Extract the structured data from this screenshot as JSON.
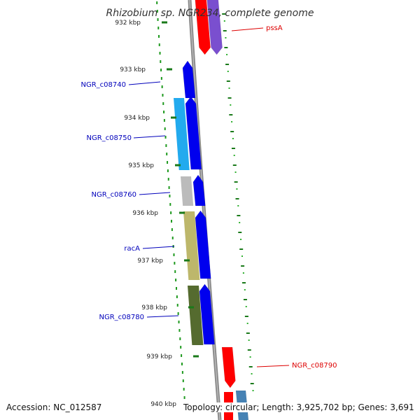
{
  "title": "Rhizobium sp. NGR234, complete genome",
  "footer": {
    "accession": "Accession: NC_012587",
    "topology": "Topology: circular; Length: 3,925,702 bp; Genes: 3,691"
  },
  "ticks": [
    {
      "label": "932 kbp"
    },
    {
      "label": "933 kbp"
    },
    {
      "label": "934 kbp"
    },
    {
      "label": "935 kbp"
    },
    {
      "label": "936 kbp"
    },
    {
      "label": "937 kbp"
    },
    {
      "label": "938 kbp"
    },
    {
      "label": "939 kbp"
    },
    {
      "label": "940 kbp"
    }
  ],
  "genes": [
    {
      "label": "pssA",
      "strand": "reverse",
      "color": "#ff0000",
      "label_color": "#dd0000"
    },
    {
      "label": "NGR_c08740",
      "strand": "forward",
      "color": "#0000ee",
      "label_color": "#0000bb"
    },
    {
      "label": "NGR_c08750",
      "strand": "forward",
      "color": "#22aaee",
      "label_color": "#0000bb"
    },
    {
      "label": "NGR_c08760",
      "strand": "forward",
      "color": "#bbbbbb",
      "label_color": "#0000bb"
    },
    {
      "label": "racA",
      "strand": "forward",
      "color": "#bdb76b",
      "label_color": "#0000bb"
    },
    {
      "label": "NGR_c08780",
      "strand": "forward",
      "color": "#556b2f",
      "label_color": "#0000bb"
    },
    {
      "label": "NGR_c08790",
      "strand": "reverse",
      "color": "#ff0000",
      "label_color": "#dd0000"
    }
  ]
}
